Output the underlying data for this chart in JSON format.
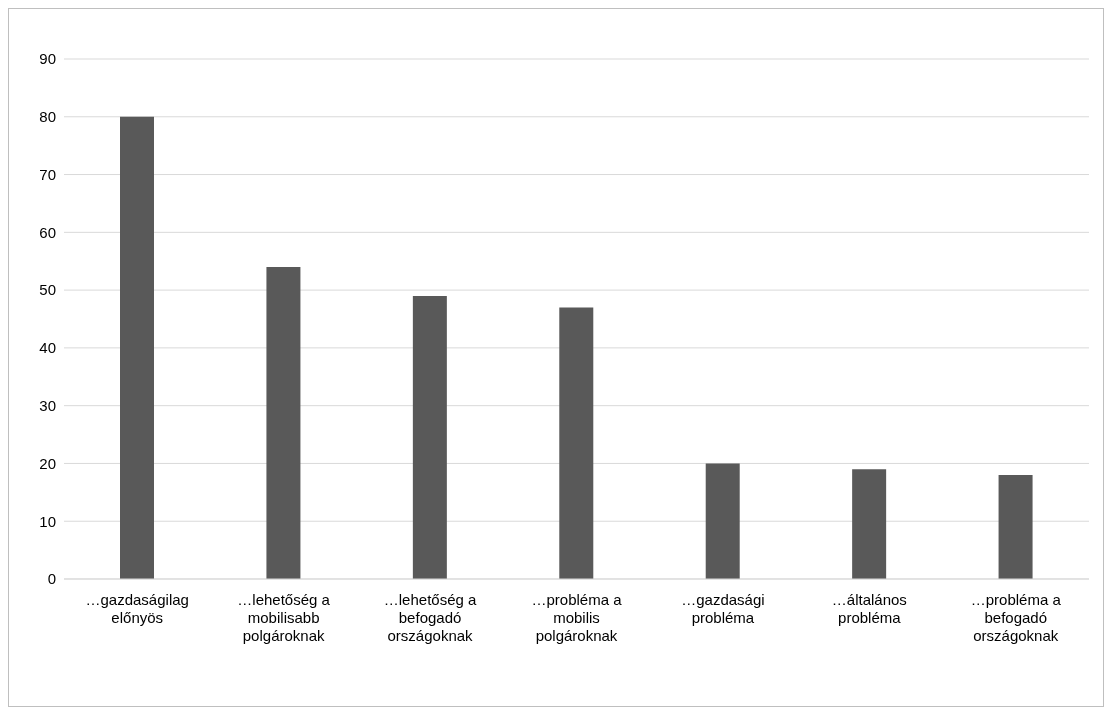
{
  "chart_data": {
    "type": "bar",
    "categories": [
      "…gazdaságilag előnyös",
      "…lehetőség a mobilisabb polgároknak",
      "…lehetőség a befogadó országoknak",
      "…probléma a mobilis polgároknak",
      "…gazdasági probléma",
      "…általános probléma",
      "…probléma a befogadó országoknak"
    ],
    "values": [
      80,
      54,
      49,
      47,
      20,
      19,
      18
    ],
    "color": "#595959",
    "ylim": [
      0,
      90
    ],
    "yticks": [
      0,
      10,
      20,
      30,
      40,
      50,
      60,
      70,
      80,
      90
    ],
    "grid": "y",
    "legend": false
  }
}
